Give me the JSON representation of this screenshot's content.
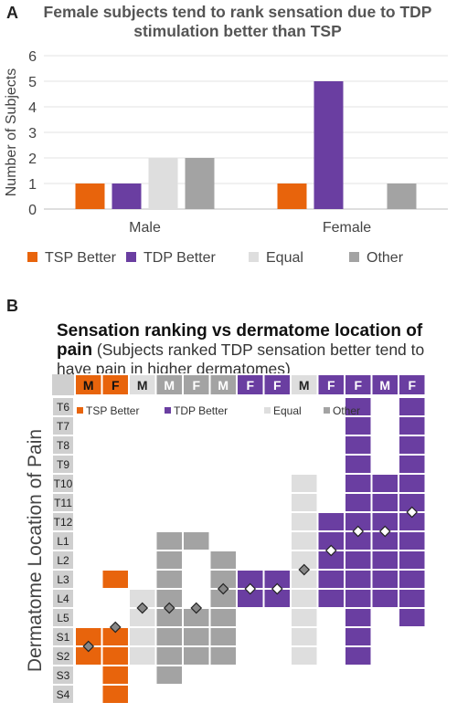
{
  "panel_a": {
    "letter": "A",
    "title": "Female subjects tend to rank sensation due to TDP stimulation better than TSP"
  },
  "panel_b": {
    "letter": "B",
    "title_bold": "Sensation ranking vs dermatome location of pain",
    "title_rest": " (Subjects ranked TDP sensation better tend to have pain in higher dermatomes)"
  },
  "chart_data": [
    {
      "type": "bar",
      "title": "Female subjects tend to rank sensation due to TDP stimulation better than TSP",
      "ylabel": "Number of Subjects",
      "xlabel": "",
      "ylim": [
        0,
        6
      ],
      "yticks": [
        0,
        1,
        2,
        3,
        4,
        5,
        6
      ],
      "grid": true,
      "legend": "bottom",
      "categories": [
        "Male",
        "Female"
      ],
      "series": [
        {
          "name": "TSP Better",
          "color": "#e8640c",
          "values": [
            1,
            1
          ]
        },
        {
          "name": "TDP Better",
          "color": "#6a3ea1",
          "values": [
            1,
            5
          ]
        },
        {
          "name": "Equal",
          "color": "#dedede",
          "values": [
            2,
            0
          ]
        },
        {
          "name": "Other",
          "color": "#a3a3a3",
          "values": [
            2,
            1
          ]
        }
      ]
    },
    {
      "type": "heatmap",
      "ylabel": "Dermatome Location of Pain",
      "rows": [
        "T6",
        "T7",
        "T8",
        "T9",
        "T10",
        "T11",
        "T12",
        "L1",
        "L2",
        "L3",
        "L4",
        "L5",
        "S1",
        "S2",
        "S3",
        "S4"
      ],
      "legend": "top",
      "legend_items": [
        {
          "name": "TSP Better",
          "color": "#e8640c",
          "group": "TSP"
        },
        {
          "name": "TDP Better",
          "color": "#6a3ea1",
          "group": "TDP"
        },
        {
          "name": "Equal",
          "color": "#dedede",
          "group": "Equal"
        },
        {
          "name": "Other",
          "color": "#a3a3a3",
          "group": "Other"
        }
      ],
      "header_color": "#cfcfcf",
      "columns": [
        {
          "sex": "M",
          "group": "TSP",
          "rows": [
            "S1",
            "S2"
          ],
          "marker": "S2"
        },
        {
          "sex": "F",
          "group": "TSP",
          "rows": [
            "L3",
            "S1",
            "S2",
            "S3",
            "S4"
          ],
          "marker": "S1"
        },
        {
          "sex": "M",
          "group": "Equal",
          "rows": [
            "L4",
            "L5",
            "S1",
            "S2"
          ],
          "marker": "L5"
        },
        {
          "sex": "M",
          "group": "Other",
          "rows": [
            "L1",
            "L2",
            "L3",
            "L4",
            "L5",
            "S1",
            "S2",
            "S3"
          ],
          "marker": "L5"
        },
        {
          "sex": "F",
          "group": "Other",
          "rows": [
            "L1",
            "L5",
            "S1",
            "S2"
          ],
          "marker": "L5"
        },
        {
          "sex": "M",
          "group": "Other",
          "rows": [
            "L2",
            "L3",
            "L4",
            "L5",
            "S1",
            "S2"
          ],
          "marker": "L4"
        },
        {
          "sex": "F",
          "group": "TDP",
          "rows": [
            "L3",
            "L4"
          ],
          "marker": "L4"
        },
        {
          "sex": "F",
          "group": "TDP",
          "rows": [
            "L3",
            "L4"
          ],
          "marker": "L4"
        },
        {
          "sex": "M",
          "group": "Equal",
          "rows": [
            "T10",
            "T11",
            "T12",
            "L1",
            "L2",
            "L3",
            "L4",
            "L5",
            "S1",
            "S2"
          ],
          "marker": "L3"
        },
        {
          "sex": "F",
          "group": "TDP",
          "rows": [
            "T12",
            "L1",
            "L2",
            "L3",
            "L4"
          ],
          "marker": "L2"
        },
        {
          "sex": "F",
          "group": "TDP",
          "rows": [
            "T6",
            "T7",
            "T8",
            "T9",
            "T10",
            "T11",
            "T12",
            "L1",
            "L2",
            "L3",
            "L4",
            "L5",
            "S1",
            "S2"
          ],
          "marker": "L1"
        },
        {
          "sex": "M",
          "group": "TDP",
          "rows": [
            "T10",
            "T11",
            "T12",
            "L1",
            "L2",
            "L3",
            "L4"
          ],
          "marker": "L1"
        },
        {
          "sex": "F",
          "group": "TDP",
          "rows": [
            "T6",
            "T7",
            "T8",
            "T9",
            "T10",
            "T11",
            "T12",
            "L1",
            "L2",
            "L3",
            "L4",
            "L5"
          ],
          "marker": "T12"
        }
      ]
    }
  ]
}
